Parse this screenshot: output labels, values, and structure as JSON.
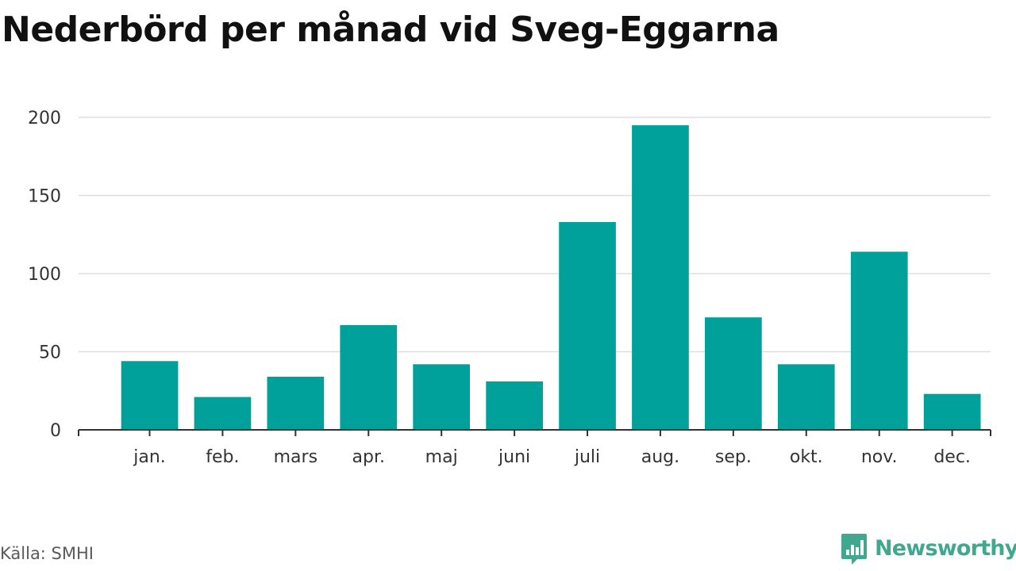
{
  "chart_data": {
    "type": "bar",
    "title": "Nederbörd per månad vid Sveg-Eggarna",
    "categories": [
      "jan.",
      "feb.",
      "mars",
      "apr.",
      "maj",
      "juni",
      "juli",
      "aug.",
      "sep.",
      "okt.",
      "nov.",
      "dec."
    ],
    "values": [
      44,
      21,
      34,
      67,
      42,
      31,
      133,
      195,
      72,
      42,
      114,
      23
    ],
    "ylim": [
      0,
      200
    ],
    "yticks": [
      0,
      50,
      100,
      150,
      200
    ],
    "xlabel": "",
    "ylabel": "",
    "grid": true,
    "bar_color": "#00a19a"
  },
  "source": "Källa: SMHI",
  "brand": {
    "name": "Newsworthy",
    "icon": "newsworthy-logo-icon",
    "color": "#3fa88f"
  }
}
